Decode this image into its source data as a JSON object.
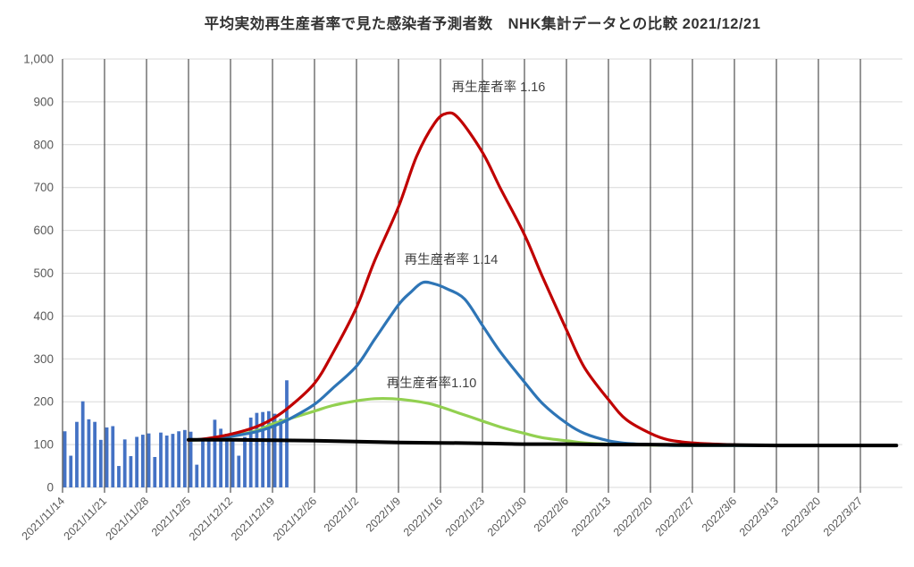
{
  "title": "平均実効再生産者率で見た感染者予測者数　NHK集計データとの比較 2021/12/21",
  "chart_data": {
    "type": "combo-bar-line",
    "title": "平均実効再生産者率で見た感染者予測者数　NHK集計データとの比較 2021/12/21",
    "x_unit": "days since 2021/11/14",
    "y_axis": {
      "min": 0,
      "max": 1000,
      "step": 100,
      "tick_labels": [
        "0",
        "100",
        "200",
        "300",
        "400",
        "500",
        "600",
        "700",
        "800",
        "900",
        "1,000"
      ]
    },
    "x_axis": {
      "tick_interval_days": 7,
      "tick_labels": [
        "2021/11/14",
        "2021/11/21",
        "2021/11/28",
        "2021/12/5",
        "2021/12/12",
        "2021/12/19",
        "2021/12/26",
        "2022/1/2",
        "2022/1/9",
        "2022/1/16",
        "2022/1/23",
        "2022/1/30",
        "2022/2/6",
        "2022/2/13",
        "2022/2/20",
        "2022/2/27",
        "2022/3/6",
        "2022/3/13",
        "2022/3/20",
        "2022/3/27"
      ]
    },
    "bars": {
      "id": "daily-observed-cases",
      "color": "#4472C4",
      "start_date": "2021/11/14",
      "end_date": "2021/12/21",
      "values": [
        131,
        74,
        153,
        201,
        159,
        153,
        111,
        140,
        143,
        50,
        112,
        73,
        118,
        123,
        126,
        71,
        128,
        121,
        125,
        131,
        134,
        130,
        53,
        116,
        108,
        158,
        137,
        125,
        111,
        74,
        118,
        163,
        174,
        176,
        178,
        172,
        160,
        250
      ]
    },
    "series": [
      {
        "id": "rt-1.10",
        "label": "再生産者率1.10",
        "color": "#92D050",
        "stroke_width": 3.2,
        "points": [
          [
            21,
            110
          ],
          [
            24,
            112
          ],
          [
            28,
            120
          ],
          [
            32,
            131
          ],
          [
            35,
            148
          ],
          [
            38,
            161
          ],
          [
            42,
            178
          ],
          [
            45,
            191
          ],
          [
            49,
            202
          ],
          [
            52,
            207
          ],
          [
            55,
            207
          ],
          [
            58,
            203
          ],
          [
            61,
            196
          ],
          [
            63,
            188
          ],
          [
            66,
            174
          ],
          [
            70,
            155
          ],
          [
            73,
            141
          ],
          [
            77,
            126
          ],
          [
            80,
            116
          ],
          [
            84,
            109
          ],
          [
            87,
            104
          ],
          [
            91,
            101
          ],
          [
            94,
            100
          ],
          [
            98,
            99
          ],
          [
            103,
            98
          ],
          [
            110,
            98
          ],
          [
            118,
            98
          ]
        ]
      },
      {
        "id": "rt-1.14",
        "label": "再生産者率 1.14",
        "color": "#2E75B6",
        "stroke_width": 3.2,
        "points": [
          [
            21,
            110
          ],
          [
            24,
            113
          ],
          [
            28,
            119
          ],
          [
            32,
            129
          ],
          [
            35,
            142
          ],
          [
            38,
            161
          ],
          [
            42,
            194
          ],
          [
            45,
            231
          ],
          [
            49,
            283
          ],
          [
            52,
            345
          ],
          [
            56,
            426
          ],
          [
            58,
            455
          ],
          [
            60,
            478
          ],
          [
            62,
            475
          ],
          [
            64,
            464
          ],
          [
            67,
            440
          ],
          [
            70,
            378
          ],
          [
            73,
            316
          ],
          [
            77,
            246
          ],
          [
            80,
            196
          ],
          [
            84,
            150
          ],
          [
            87,
            126
          ],
          [
            91,
            109
          ],
          [
            94,
            103
          ],
          [
            98,
            100
          ],
          [
            102,
            98
          ],
          [
            106,
            98
          ],
          [
            112,
            98
          ],
          [
            120,
            98
          ]
        ]
      },
      {
        "id": "rt-1.16",
        "label": "再生産者率 1.16",
        "color": "#C00000",
        "stroke_width": 3.2,
        "points": [
          [
            21,
            110
          ],
          [
            24,
            114
          ],
          [
            28,
            124
          ],
          [
            32,
            140
          ],
          [
            35,
            160
          ],
          [
            38,
            190
          ],
          [
            42,
            243
          ],
          [
            45,
            312
          ],
          [
            49,
            420
          ],
          [
            52,
            528
          ],
          [
            56,
            655
          ],
          [
            59,
            772
          ],
          [
            62,
            850
          ],
          [
            64,
            873
          ],
          [
            66,
            862
          ],
          [
            70,
            782
          ],
          [
            73,
            698
          ],
          [
            77,
            590
          ],
          [
            80,
            492
          ],
          [
            84,
            368
          ],
          [
            87,
            280
          ],
          [
            91,
            205
          ],
          [
            94,
            158
          ],
          [
            98,
            126
          ],
          [
            101,
            111
          ],
          [
            105,
            104
          ],
          [
            109,
            101
          ],
          [
            113,
            99
          ],
          [
            118,
            98
          ],
          [
            122,
            98
          ]
        ]
      },
      {
        "id": "nhk-baseline",
        "label": "",
        "color": "#000000",
        "stroke_width": 4,
        "points": [
          [
            21,
            111
          ],
          [
            28,
            111
          ],
          [
            35,
            110
          ],
          [
            42,
            109
          ],
          [
            49,
            107
          ],
          [
            56,
            105
          ],
          [
            63,
            104
          ],
          [
            70,
            103
          ],
          [
            77,
            101
          ],
          [
            84,
            101
          ],
          [
            91,
            100
          ],
          [
            98,
            100
          ],
          [
            105,
            99
          ],
          [
            112,
            99
          ],
          [
            119,
            98
          ],
          [
            126,
            98
          ],
          [
            133,
            98
          ],
          [
            139,
            98
          ]
        ]
      }
    ],
    "annotations": [
      {
        "text": "再生産者率 1.16",
        "x": 558,
        "y": 102
      },
      {
        "text": "再生産者率 1.14",
        "x": 505,
        "y": 295
      },
      {
        "text": "再生産者率1.10",
        "x": 483,
        "y": 433
      }
    ],
    "grid": {
      "h_color": "#D9D9D9",
      "v_color": "#3f3f3f"
    },
    "text_color": "#595959",
    "annotation_color": "#404040",
    "legend": "none"
  }
}
